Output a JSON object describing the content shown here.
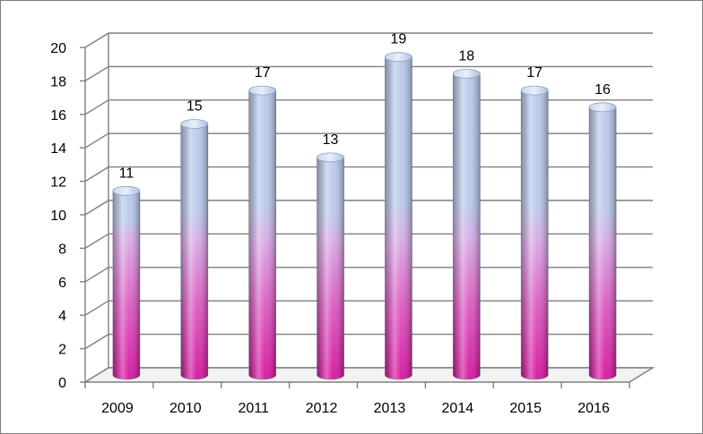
{
  "chart_data": {
    "type": "bar",
    "style": "3d-cylinder",
    "categories": [
      "2009",
      "2010",
      "2011",
      "2012",
      "2013",
      "2014",
      "2015",
      "2016"
    ],
    "values": [
      11,
      15,
      17,
      13,
      19,
      18,
      17,
      16
    ],
    "data_labels": [
      "11",
      "15",
      "17",
      "13",
      "19",
      "18",
      "17",
      "16"
    ],
    "yticks": [
      "0",
      "2",
      "4",
      "6",
      "8",
      "10",
      "12",
      "14",
      "16",
      "18",
      "20"
    ],
    "ylim": [
      0,
      20
    ],
    "grid": true,
    "legend": "none",
    "colors": {
      "bar_top": "#b9c9ea",
      "bar_mid": "#d9a9e6",
      "bar_bottom": "#d6169f",
      "grid": "#7f7f7f",
      "frame": "#7f7f7f"
    }
  }
}
